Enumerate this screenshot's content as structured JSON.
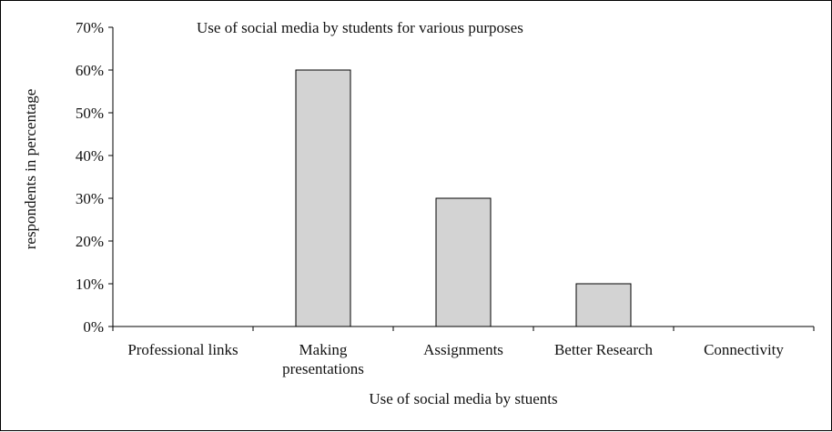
{
  "chart_data": {
    "type": "bar",
    "title": "Use of social media by students for various purposes",
    "xlabel": "Use of social media by stuents",
    "ylabel": "respondents in percentage",
    "categories": [
      [
        "Professional links"
      ],
      [
        "Making",
        "presentations"
      ],
      [
        "Assignments"
      ],
      [
        "Better Research"
      ],
      [
        "Connectivity"
      ]
    ],
    "values": [
      0,
      60,
      30,
      10,
      0
    ],
    "ylim": [
      0,
      70
    ],
    "yticks": [
      "0%",
      "10%",
      "20%",
      "30%",
      "40%",
      "50%",
      "60%",
      "70%"
    ],
    "grid": false,
    "bar_color": "#d3d3d3"
  }
}
